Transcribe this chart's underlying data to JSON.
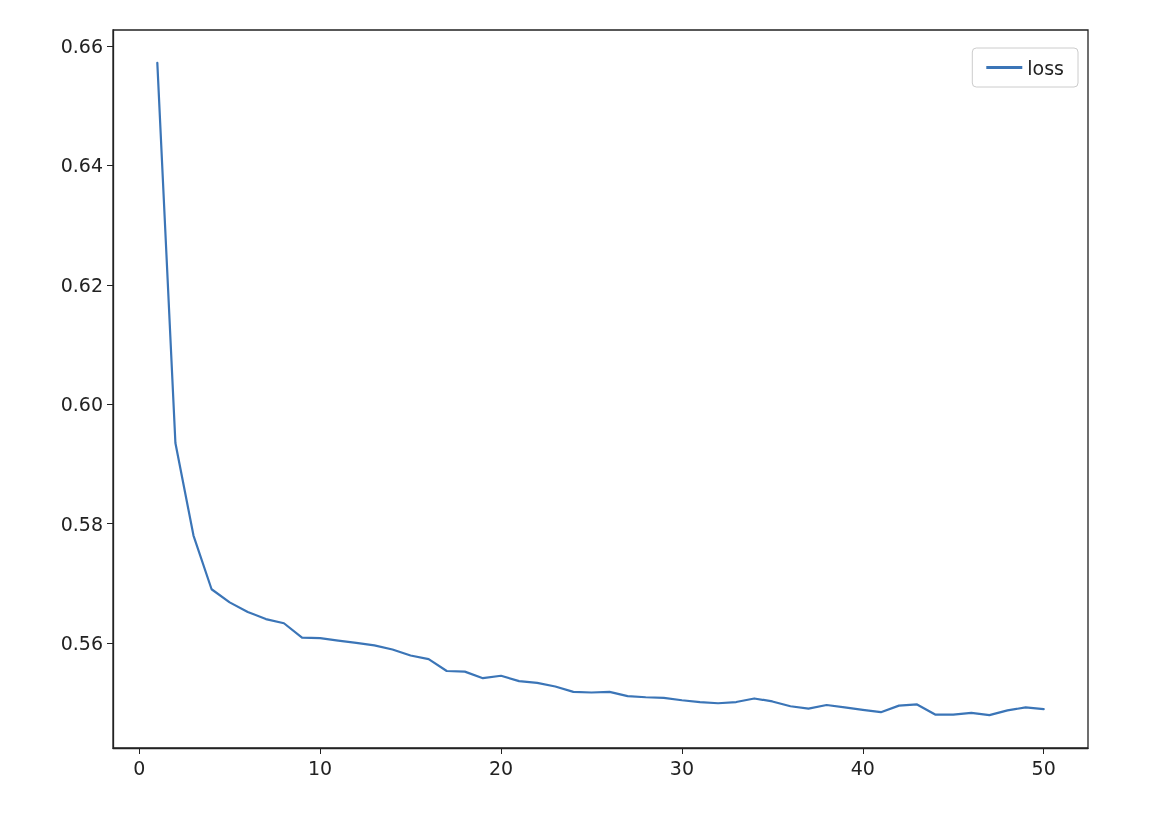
{
  "chart_data": {
    "type": "line",
    "x": [
      1,
      2,
      3,
      4,
      5,
      6,
      7,
      8,
      9,
      10,
      11,
      12,
      13,
      14,
      15,
      16,
      17,
      18,
      19,
      20,
      21,
      22,
      23,
      24,
      25,
      26,
      27,
      28,
      29,
      30,
      31,
      32,
      33,
      34,
      35,
      36,
      37,
      38,
      39,
      40,
      41,
      42,
      43,
      44,
      45,
      46,
      47,
      48,
      49,
      50
    ],
    "series": [
      {
        "name": "loss",
        "color": "#3b75b7",
        "values": [
          0.6572,
          0.5935,
          0.578,
          0.569,
          0.5668,
          0.5652,
          0.564,
          0.5633,
          0.5609,
          0.5608,
          0.5604,
          0.56,
          0.5596,
          0.5589,
          0.5579,
          0.5573,
          0.5553,
          0.5552,
          0.5541,
          0.5545,
          0.5536,
          0.5533,
          0.5527,
          0.5518,
          0.5517,
          0.5518,
          0.5511,
          0.5509,
          0.5508,
          0.5504,
          0.5501,
          0.5499,
          0.5501,
          0.5507,
          0.5502,
          0.5494,
          0.549,
          0.5496,
          0.5492,
          0.5488,
          0.5484,
          0.5495,
          0.5497,
          0.548,
          0.548,
          0.5483,
          0.5479,
          0.5487,
          0.5492,
          0.5489
        ]
      }
    ],
    "xlim": [
      -1.45,
      52.45
    ],
    "xticks": [
      0,
      10,
      20,
      30,
      40,
      50
    ],
    "ylim": [
      0.5424,
      0.6627
    ],
    "yticks": [
      {
        "value": 0.56,
        "label": "0.56"
      },
      {
        "value": 0.58,
        "label": "0.58"
      },
      {
        "value": 0.6,
        "label": "0.60"
      },
      {
        "value": 0.62,
        "label": "0.62"
      },
      {
        "value": 0.64,
        "label": "0.64"
      },
      {
        "value": 0.66,
        "label": "0.66"
      }
    ],
    "legend": "top right",
    "grid": false,
    "marker": "none",
    "line_style": "solid"
  }
}
